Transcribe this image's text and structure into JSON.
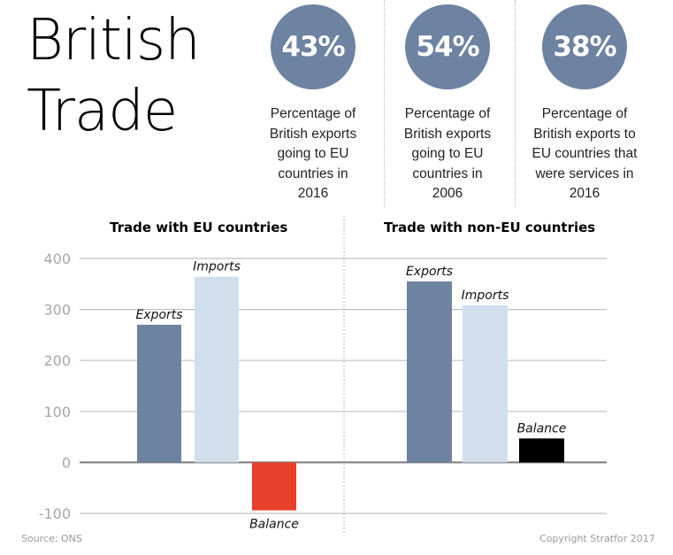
{
  "title_lines": [
    "British",
    "Trade"
  ],
  "stats": [
    {
      "value": "43%",
      "lines": [
        "Percentage of",
        "British exports",
        "going to EU",
        "countries in",
        "2016"
      ]
    },
    {
      "value": "54%",
      "lines": [
        "Percentage of",
        "British exports",
        "going to EU",
        "countries in",
        "2006"
      ]
    },
    {
      "value": "38%",
      "lines": [
        "Percentage of",
        "British exports to",
        "EU countries that",
        "were services in",
        "2016"
      ]
    }
  ],
  "colors": {
    "circle": "#6e82a2",
    "exports": "#6e82a2",
    "imports": "#d0dfeb",
    "balance_negative": "#e8402a",
    "balance_positive": "#000000",
    "gridline": "#c0c0c0",
    "zero_line": "#7a7a7a"
  },
  "chart_data": [
    {
      "type": "bar",
      "title": "Trade with EU countries",
      "categories": [
        "Exports",
        "Imports",
        "Balance"
      ],
      "values": [
        270,
        364,
        -94
      ],
      "xlabel": "",
      "ylabel": "",
      "ylim": [
        -100,
        400
      ],
      "yticks": [
        400,
        300,
        200,
        100,
        0,
        -100
      ],
      "grid": true,
      "legend": "none"
    },
    {
      "type": "bar",
      "title": "Trade with non-EU countries",
      "categories": [
        "Exports",
        "Imports",
        "Balance"
      ],
      "values": [
        355,
        308,
        47
      ],
      "xlabel": "",
      "ylabel": "",
      "ylim": [
        -100,
        400
      ],
      "yticks": [
        400,
        300,
        200,
        100,
        0,
        -100
      ],
      "grid": true,
      "legend": "none"
    }
  ],
  "footer": {
    "source": "Source: ONS",
    "copyright": "Copyright Stratfor 2017"
  }
}
